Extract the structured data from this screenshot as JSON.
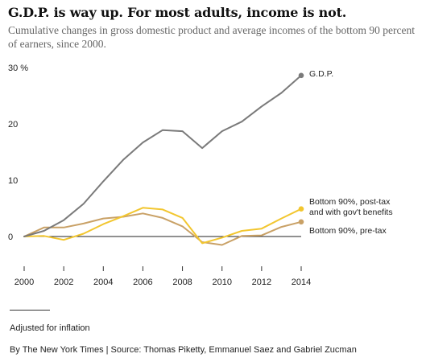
{
  "title": "G.D.P. is way up. For most adults, income is not.",
  "subtitle": "Cumulative changes in gross domestic product and average incomes of the bottom 90 percent of earners, since 2000.",
  "note": "Adjusted for inflation",
  "credit": "By The New York Times | Source:  Thomas Piketty, Emmanuel Saez and Gabriel Zucman",
  "chart_data": {
    "type": "line",
    "ylim": [
      -5,
      30
    ],
    "xlim": [
      2000,
      2014
    ],
    "y_ticks": [
      0,
      10,
      20,
      30
    ],
    "y_tick_labels": [
      "0",
      "10",
      "20",
      "30 %"
    ],
    "x_ticks": [
      2000,
      2002,
      2004,
      2006,
      2008,
      2010,
      2012,
      2014
    ],
    "x_tick_labels": [
      "2000",
      "2002",
      "2004",
      "2006",
      "2008",
      "2010",
      "2012",
      "2014"
    ],
    "grid": false,
    "legend": "direct labels at line ends",
    "x": [
      2000,
      2001,
      2002,
      2003,
      2004,
      2005,
      2006,
      2007,
      2008,
      2009,
      2010,
      2011,
      2012,
      2013,
      2014
    ],
    "series": [
      {
        "name": "G.D.P.",
        "color": "#7a7a7a",
        "label_lines": [
          "G.D.P."
        ],
        "values": [
          0,
          1.0,
          2.9,
          5.8,
          9.8,
          13.6,
          16.7,
          18.9,
          18.7,
          15.7,
          18.7,
          20.4,
          23.1,
          25.5,
          28.6
        ]
      },
      {
        "name": "Bottom 90%, post-tax and with gov't benefits",
        "color": "#f2c62f",
        "label_lines": [
          "Bottom 90%, post-tax",
          "and with gov't benefits"
        ],
        "values": [
          0,
          0.1,
          -0.6,
          0.5,
          2.2,
          3.6,
          5.1,
          4.8,
          3.3,
          -1.2,
          -0.2,
          1.0,
          1.4,
          3.2,
          4.9
        ]
      },
      {
        "name": "Bottom 90%, pre-tax",
        "color": "#c9a166",
        "label_lines": [
          "Bottom 90%, pre-tax"
        ],
        "values": [
          0,
          1.6,
          1.6,
          2.3,
          3.2,
          3.5,
          4.1,
          3.3,
          1.8,
          -1.0,
          -1.5,
          0.1,
          0.2,
          1.7,
          2.6
        ]
      }
    ]
  }
}
